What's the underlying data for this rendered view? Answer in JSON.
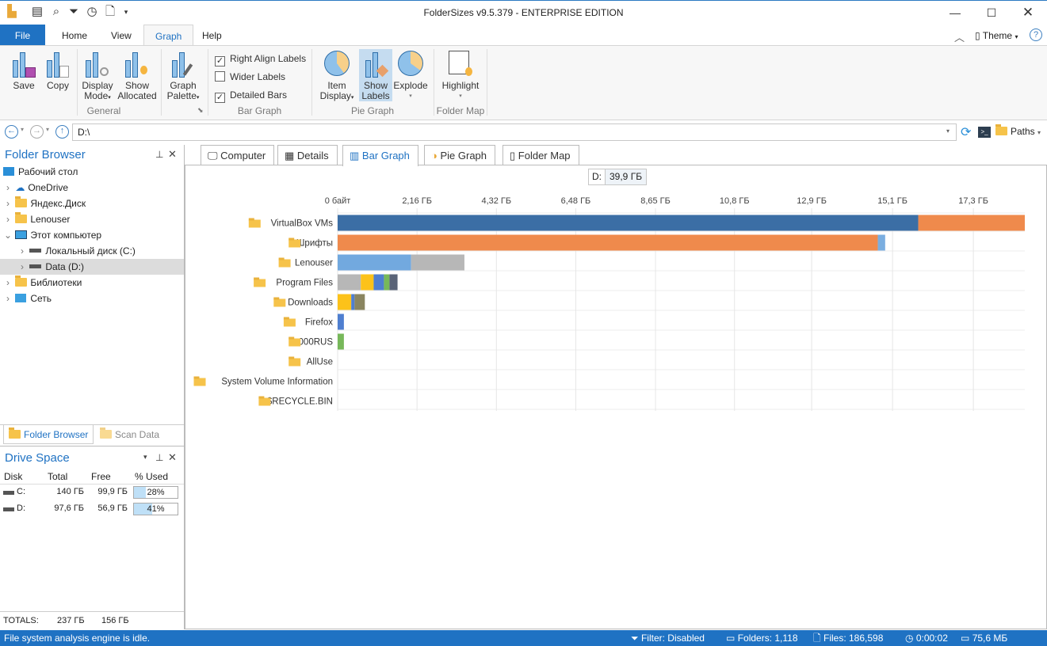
{
  "window": {
    "title": "FolderSizes v9.5.379 - ENTERPRISE EDITION"
  },
  "ribbon": {
    "tabs": [
      {
        "label": "File"
      },
      {
        "label": "Home"
      },
      {
        "label": "View"
      },
      {
        "label": "Graph",
        "active": true
      },
      {
        "label": "Help"
      }
    ],
    "theme_label": "Theme",
    "groups": {
      "general": "General",
      "bar_graph": "Bar Graph",
      "pie_graph": "Pie Graph",
      "folder_map": "Folder Map"
    },
    "buttons": {
      "save": "Save",
      "copy": "Copy",
      "display_mode_1": "Display",
      "display_mode_2": "Mode",
      "show_allocated_1": "Show",
      "show_allocated_2": "Allocated",
      "graph_palette_1": "Graph",
      "graph_palette_2": "Palette",
      "item_display_1": "Item",
      "item_display_2": "Display",
      "show_labels_1": "Show",
      "show_labels_2": "Labels",
      "explode": "Explode",
      "highlight": "Highlight"
    },
    "checkboxes": [
      {
        "label": "Right Align Labels",
        "checked": true
      },
      {
        "label": "Wider Labels",
        "checked": false
      },
      {
        "label": "Detailed Bars",
        "checked": true
      }
    ]
  },
  "address": {
    "path": "D:\\",
    "paths_label": "Paths"
  },
  "folder_browser": {
    "title": "Folder Browser",
    "items": [
      {
        "label": "Рабочий стол",
        "icon": "desktop-icon"
      },
      {
        "label": "OneDrive",
        "icon": "cloud-icon"
      },
      {
        "label": "Яндекс.Диск",
        "icon": "folder-icon"
      },
      {
        "label": "Lenouser",
        "icon": "folder-icon"
      },
      {
        "label": "Этот компьютер",
        "icon": "computer-icon"
      },
      {
        "label": "Локальный диск (C:)",
        "icon": "drive-icon"
      },
      {
        "label": "Data (D:)",
        "icon": "drive-icon",
        "selected": true
      },
      {
        "label": "Библиотеки",
        "icon": "folder-icon"
      },
      {
        "label": "Сеть",
        "icon": "network-icon"
      }
    ],
    "bottom_tabs": [
      "Folder Browser",
      "Scan Data"
    ]
  },
  "drive_space": {
    "title": "Drive Space",
    "columns": [
      "Disk",
      "Total",
      "Free",
      "% Used"
    ],
    "rows": [
      {
        "disk": "C:",
        "total": "140 ГБ",
        "free": "99,9 ГБ",
        "used": "28%",
        "used_pct": 28
      },
      {
        "disk": "D:",
        "total": "97,6 ГБ",
        "free": "56,9 ГБ",
        "used": "41%",
        "used_pct": 41
      }
    ],
    "totals": {
      "label": "TOTALS:",
      "total": "237 ГБ",
      "free": "156 ГБ"
    }
  },
  "main_tabs": [
    {
      "label": "Computer"
    },
    {
      "label": "Details"
    },
    {
      "label": "Bar Graph",
      "active": true
    },
    {
      "label": "Pie Graph"
    },
    {
      "label": "Folder Map"
    }
  ],
  "tooltip": {
    "drive": "D:",
    "size": "39,9 ГБ"
  },
  "chart_data": {
    "type": "bar",
    "orientation": "horizontal",
    "stacked": true,
    "xlim": [
      0,
      18.7
    ],
    "x_unit": "GB",
    "x_ticks": [
      {
        "value": 0,
        "label": "0 байт"
      },
      {
        "value": 2.16,
        "label": "2,16 ГБ"
      },
      {
        "value": 4.32,
        "label": "4,32 ГБ"
      },
      {
        "value": 6.48,
        "label": "6,48 ГБ"
      },
      {
        "value": 8.65,
        "label": "8,65 ГБ"
      },
      {
        "value": 10.8,
        "label": "10,8 ГБ"
      },
      {
        "value": 12.9,
        "label": "12,9 ГБ"
      },
      {
        "value": 15.1,
        "label": "15,1 ГБ"
      },
      {
        "value": 17.3,
        "label": "17,3 ГБ"
      }
    ],
    "grid": true,
    "categories": [
      {
        "label": "VirtualBox VMs",
        "segments": [
          {
            "value": 15.8,
            "color": "#3b6ea5"
          },
          {
            "value": 2.9,
            "color": "#ef8a4c"
          }
        ]
      },
      {
        "label": "Шрифты",
        "segments": [
          {
            "value": 14.7,
            "color": "#ef8a4c"
          },
          {
            "value": 0.2,
            "color": "#7aaee0"
          }
        ]
      },
      {
        "label": "Lenouser",
        "segments": [
          {
            "value": 2.0,
            "color": "#72a9df"
          },
          {
            "value": 1.45,
            "color": "#b7b7b7"
          }
        ]
      },
      {
        "label": "Program Files",
        "segments": [
          {
            "value": 0.63,
            "color": "#b7b7b7"
          },
          {
            "value": 0.35,
            "color": "#fcc21a"
          },
          {
            "value": 0.28,
            "color": "#4f7fd0"
          },
          {
            "value": 0.15,
            "color": "#77b85a"
          },
          {
            "value": 0.22,
            "color": "#5a6478"
          }
        ]
      },
      {
        "label": "Downloads",
        "segments": [
          {
            "value": 0.37,
            "color": "#fcc21a"
          },
          {
            "value": 0.09,
            "color": "#4f7fd0"
          },
          {
            "value": 0.28,
            "color": "#8a8560"
          }
        ]
      },
      {
        "label": "Firefox",
        "segments": [
          {
            "value": 0.17,
            "color": "#4f7fd0"
          }
        ]
      },
      {
        "label": "000RUS",
        "segments": [
          {
            "value": 0.17,
            "color": "#77b85a"
          }
        ]
      },
      {
        "label": "AllUse",
        "segments": []
      },
      {
        "label": "System Volume Information",
        "segments": []
      },
      {
        "label": "$RECYCLE.BIN",
        "segments": []
      }
    ]
  },
  "status": {
    "message": "File system analysis engine is idle.",
    "filter": "Filter: Disabled",
    "folders": "Folders: 1,118",
    "files": "Files: 186,598",
    "time": "0:00:02",
    "memory": "75,6 МБ"
  }
}
